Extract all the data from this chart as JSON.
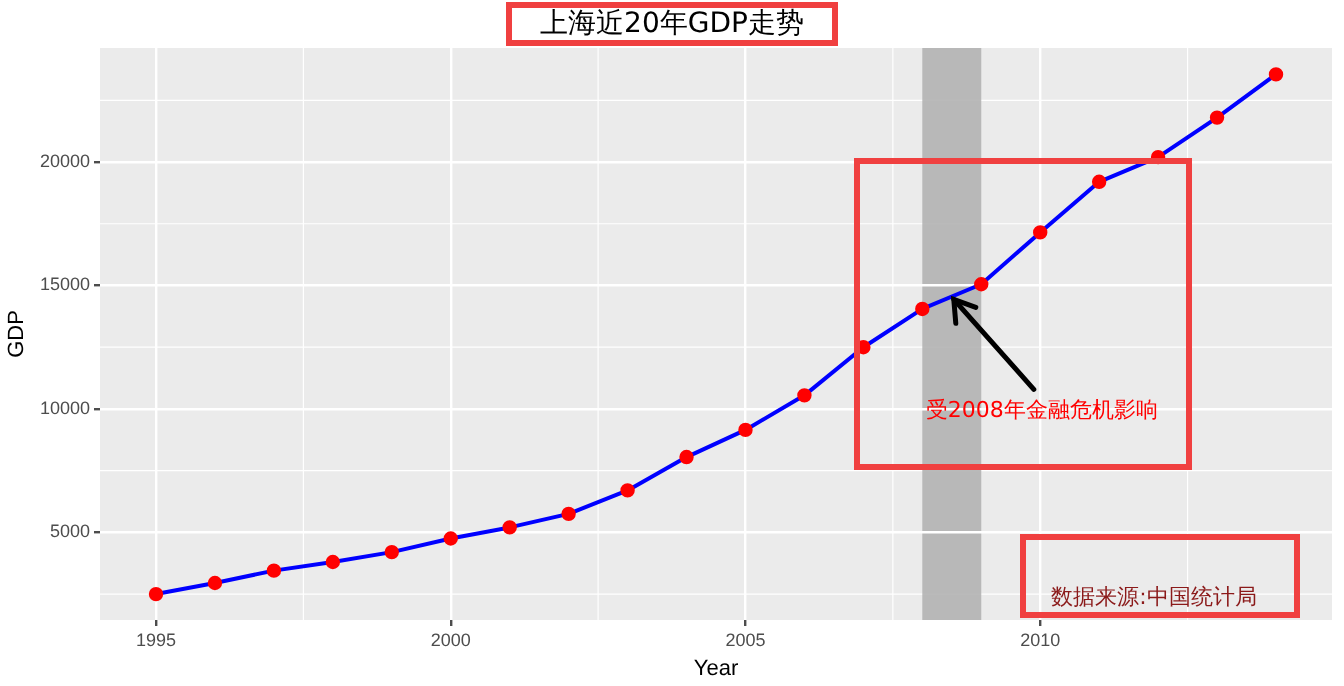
{
  "chart_data": {
    "type": "line",
    "title": "上海近20年GDP走势",
    "xlabel": "Year",
    "ylabel": "GDP",
    "x": [
      1995,
      1996,
      1997,
      1998,
      1999,
      2000,
      2001,
      2002,
      2003,
      2004,
      2005,
      2006,
      2007,
      2008,
      2009,
      2010,
      2011,
      2012,
      2013,
      2014
    ],
    "series": [
      {
        "color": "#0000ff",
        "colors": [
          "#ff0000",
          "#ff0000",
          "#ff0000",
          "#ff0000",
          "#ff0000",
          "#ff0000",
          "#ff0000",
          "#ff0000",
          "#ff0000",
          "#ff0000",
          "#ff0000",
          "#ff0000",
          "#ff0000",
          "#ff0000",
          "#ff0000",
          "#ff0000",
          "#ff0000",
          "#ff0000",
          "#ff0000",
          "#ff0000"
        ],
        "values": [
          2500,
          2950,
          3450,
          3800,
          4200,
          4750,
          5200,
          5750,
          6700,
          8050,
          9150,
          10550,
          12500,
          14050,
          15050,
          17150,
          19200,
          20200,
          21800,
          23550
        ]
      }
    ],
    "xlim": [
      1994.05,
      2014.95
    ],
    "xticks": [
      1995,
      2000,
      2005,
      2010
    ],
    "ylim": [
      1450,
      24620
    ],
    "yticks": [
      5000,
      10000,
      15000,
      20000
    ],
    "grid": true,
    "legend": false,
    "marker": "circle",
    "line_style": "solid",
    "bands": [
      {
        "axis": "x",
        "from": 2008,
        "to": 2009,
        "color": "#b3b3b3"
      }
    ],
    "annotations": [
      {
        "text": "受2008年金融危机影响",
        "x": 2008.5,
        "y": 14600
      },
      "数据来源:中国统计局"
    ]
  }
}
